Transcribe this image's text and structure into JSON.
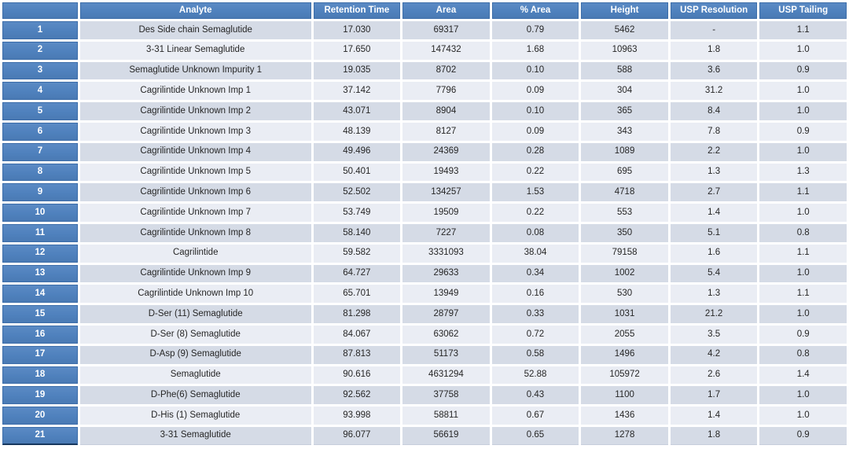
{
  "colors": {
    "header_blue": "#4f81bd",
    "header_border": "#3c6da9",
    "row_dark": "#d5dbe6",
    "row_light": "#eaedf4",
    "text": "#262626",
    "header_text": "#ffffff",
    "bottom_accent": "#17375e",
    "page_bg": "#ffffff"
  },
  "table": {
    "columns": [
      {
        "key": "num",
        "label": ""
      },
      {
        "key": "analyte",
        "label": "Analyte"
      },
      {
        "key": "rt",
        "label": "Retention Time"
      },
      {
        "key": "area",
        "label": "Area"
      },
      {
        "key": "pct",
        "label": "% Area"
      },
      {
        "key": "height",
        "label": "Height"
      },
      {
        "key": "res",
        "label": "USP Resolution"
      },
      {
        "key": "tail",
        "label": "USP Tailing"
      }
    ],
    "rows": [
      [
        "1",
        "Des Side chain Semaglutide",
        "17.030",
        "69317",
        "0.79",
        "5462",
        "-",
        "1.1"
      ],
      [
        "2",
        "3-31 Linear Semaglutide",
        "17.650",
        "147432",
        "1.68",
        "10963",
        "1.8",
        "1.0"
      ],
      [
        "3",
        "Semaglutide Unknown Impurity 1",
        "19.035",
        "8702",
        "0.10",
        "588",
        "3.6",
        "0.9"
      ],
      [
        "4",
        "Cagrilintide Unknown Imp 1",
        "37.142",
        "7796",
        "0.09",
        "304",
        "31.2",
        "1.0"
      ],
      [
        "5",
        "Cagrilintide Unknown Imp 2",
        "43.071",
        "8904",
        "0.10",
        "365",
        "8.4",
        "1.0"
      ],
      [
        "6",
        "Cagrilintide Unknown Imp 3",
        "48.139",
        "8127",
        "0.09",
        "343",
        "7.8",
        "0.9"
      ],
      [
        "7",
        "Cagrilintide Unknown Imp 4",
        "49.496",
        "24369",
        "0.28",
        "1089",
        "2.2",
        "1.0"
      ],
      [
        "8",
        "Cagrilintide Unknown Imp 5",
        "50.401",
        "19493",
        "0.22",
        "695",
        "1.3",
        "1.3"
      ],
      [
        "9",
        "Cagrilintide Unknown Imp 6",
        "52.502",
        "134257",
        "1.53",
        "4718",
        "2.7",
        "1.1"
      ],
      [
        "10",
        "Cagrilintide Unknown Imp 7",
        "53.749",
        "19509",
        "0.22",
        "553",
        "1.4",
        "1.0"
      ],
      [
        "11",
        "Cagrilintide Unknown Imp 8",
        "58.140",
        "7227",
        "0.08",
        "350",
        "5.1",
        "0.8"
      ],
      [
        "12",
        "Cagrilintide",
        "59.582",
        "3331093",
        "38.04",
        "79158",
        "1.6",
        "1.1"
      ],
      [
        "13",
        "Cagrilintide Unknown Imp 9",
        "64.727",
        "29633",
        "0.34",
        "1002",
        "5.4",
        "1.0"
      ],
      [
        "14",
        "Cagrilintide Unknown Imp 10",
        "65.701",
        "13949",
        "0.16",
        "530",
        "1.3",
        "1.1"
      ],
      [
        "15",
        "D-Ser (11) Semaglutide",
        "81.298",
        "28797",
        "0.33",
        "1031",
        "21.2",
        "1.0"
      ],
      [
        "16",
        "D-Ser (8) Semaglutide",
        "84.067",
        "63062",
        "0.72",
        "2055",
        "3.5",
        "0.9"
      ],
      [
        "17",
        "D-Asp (9) Semaglutide",
        "87.813",
        "51173",
        "0.58",
        "1496",
        "4.2",
        "0.8"
      ],
      [
        "18",
        "Semaglutide",
        "90.616",
        "4631294",
        "52.88",
        "105972",
        "2.6",
        "1.4"
      ],
      [
        "19",
        "D-Phe(6) Semaglutide",
        "92.562",
        "37758",
        "0.43",
        "1100",
        "1.7",
        "1.0"
      ],
      [
        "20",
        "D-His (1) Semaglutide",
        "93.998",
        "58811",
        "0.67",
        "1436",
        "1.4",
        "1.0"
      ],
      [
        "21",
        "3-31 Semaglutide",
        "96.077",
        "56619",
        "0.65",
        "1278",
        "1.8",
        "0.9"
      ]
    ]
  }
}
